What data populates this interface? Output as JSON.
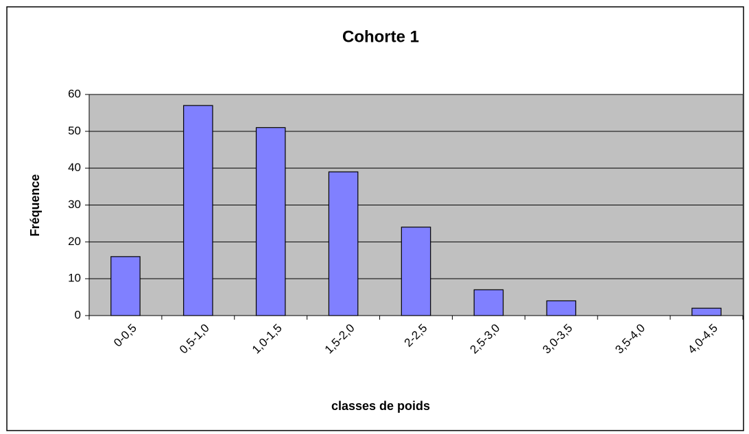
{
  "chart_data": {
    "type": "bar",
    "title": "Cohorte 1",
    "x_label": "classes de poids",
    "y_label": "Fréquence",
    "categories": [
      "0-0,5",
      "0,5-1,0",
      "1,0-1,5",
      "1,5-2,0",
      "2-2,5",
      "2,5-3,0",
      "3,0-3,5",
      "3,5-4,0",
      "4,0-4,5"
    ],
    "values": [
      16,
      57,
      51,
      39,
      24,
      7,
      4,
      0,
      2
    ],
    "color": "#8080ff",
    "plot_background": "#c0c0c0",
    "ylim": [
      0,
      60
    ],
    "yticks": [
      0,
      10,
      20,
      30,
      40,
      50,
      60
    ],
    "grid": true
  }
}
